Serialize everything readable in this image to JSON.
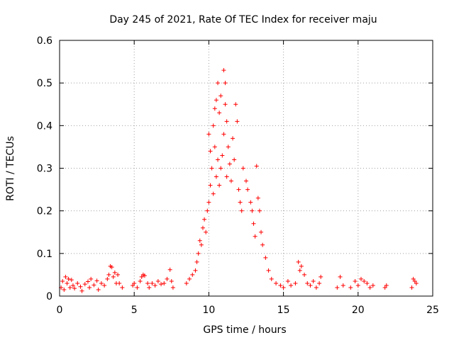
{
  "chart_data": {
    "type": "scatter",
    "title": "Day 245 of 2021, Rate Of TEC Index for receiver maju",
    "xlabel": "GPS time / hours",
    "ylabel": "ROTI / TECUs",
    "xlim": [
      0,
      25
    ],
    "ylim": [
      0,
      0.6
    ],
    "xticks": [
      0,
      5,
      10,
      15,
      20,
      25
    ],
    "yticks": [
      0,
      0.1,
      0.2,
      0.3,
      0.4,
      0.5,
      0.6
    ],
    "xtick_labels": [
      "0",
      "5",
      "10",
      "15",
      "20",
      "25"
    ],
    "ytick_labels": [
      "0",
      "0.1",
      "0.2",
      "0.3",
      "0.4",
      "0.5",
      "0.6"
    ],
    "grid": true,
    "marker": "+",
    "color": "#ff0000",
    "series": [
      {
        "name": "ROTI",
        "points": [
          [
            0.1,
            0.02
          ],
          [
            0.2,
            0.035
          ],
          [
            0.3,
            0.015
          ],
          [
            0.4,
            0.045
          ],
          [
            0.5,
            0.03
          ],
          [
            0.6,
            0.04
          ],
          [
            0.7,
            0.02
          ],
          [
            0.8,
            0.038
          ],
          [
            0.9,
            0.025
          ],
          [
            1.0,
            0.018
          ],
          [
            1.2,
            0.03
          ],
          [
            1.4,
            0.022
          ],
          [
            1.5,
            0.012
          ],
          [
            1.7,
            0.028
          ],
          [
            1.9,
            0.034
          ],
          [
            2.0,
            0.02
          ],
          [
            2.1,
            0.04
          ],
          [
            2.3,
            0.026
          ],
          [
            2.5,
            0.036
          ],
          [
            2.6,
            0.015
          ],
          [
            2.8,
            0.03
          ],
          [
            3.0,
            0.025
          ],
          [
            3.2,
            0.04
          ],
          [
            3.3,
            0.05
          ],
          [
            3.4,
            0.07
          ],
          [
            3.5,
            0.068
          ],
          [
            3.6,
            0.045
          ],
          [
            3.7,
            0.055
          ],
          [
            3.8,
            0.03
          ],
          [
            3.9,
            0.05
          ],
          [
            4.0,
            0.03
          ],
          [
            4.2,
            0.02
          ],
          [
            4.9,
            0.025
          ],
          [
            5.0,
            0.03
          ],
          [
            5.2,
            0.02
          ],
          [
            5.4,
            0.035
          ],
          [
            5.5,
            0.045
          ],
          [
            5.6,
            0.05
          ],
          [
            5.7,
            0.048
          ],
          [
            5.9,
            0.03
          ],
          [
            6.0,
            0.02
          ],
          [
            6.2,
            0.03
          ],
          [
            6.4,
            0.025
          ],
          [
            6.6,
            0.035
          ],
          [
            6.8,
            0.028
          ],
          [
            7.0,
            0.03
          ],
          [
            7.2,
            0.04
          ],
          [
            7.4,
            0.062
          ],
          [
            7.5,
            0.035
          ],
          [
            7.6,
            0.02
          ],
          [
            8.5,
            0.03
          ],
          [
            8.7,
            0.04
          ],
          [
            8.9,
            0.05
          ],
          [
            9.1,
            0.06
          ],
          [
            9.2,
            0.08
          ],
          [
            9.3,
            0.1
          ],
          [
            9.4,
            0.13
          ],
          [
            9.5,
            0.12
          ],
          [
            9.6,
            0.16
          ],
          [
            9.7,
            0.18
          ],
          [
            9.8,
            0.15
          ],
          [
            9.9,
            0.2
          ],
          [
            10.0,
            0.22
          ],
          [
            10.0,
            0.38
          ],
          [
            10.1,
            0.26
          ],
          [
            10.1,
            0.34
          ],
          [
            10.2,
            0.3
          ],
          [
            10.3,
            0.4
          ],
          [
            10.3,
            0.24
          ],
          [
            10.4,
            0.44
          ],
          [
            10.4,
            0.35
          ],
          [
            10.5,
            0.46
          ],
          [
            10.5,
            0.28
          ],
          [
            10.6,
            0.5
          ],
          [
            10.6,
            0.32
          ],
          [
            10.7,
            0.43
          ],
          [
            10.7,
            0.26
          ],
          [
            10.8,
            0.47
          ],
          [
            10.8,
            0.3
          ],
          [
            10.9,
            0.33
          ],
          [
            11.0,
            0.53
          ],
          [
            11.0,
            0.38
          ],
          [
            11.1,
            0.5
          ],
          [
            11.1,
            0.45
          ],
          [
            11.2,
            0.41
          ],
          [
            11.2,
            0.28
          ],
          [
            11.3,
            0.35
          ],
          [
            11.4,
            0.31
          ],
          [
            11.5,
            0.27
          ],
          [
            11.6,
            0.37
          ],
          [
            11.7,
            0.32
          ],
          [
            11.8,
            0.45
          ],
          [
            11.9,
            0.41
          ],
          [
            12.0,
            0.25
          ],
          [
            12.1,
            0.22
          ],
          [
            12.2,
            0.2
          ],
          [
            12.3,
            0.3
          ],
          [
            12.5,
            0.27
          ],
          [
            12.6,
            0.25
          ],
          [
            12.8,
            0.22
          ],
          [
            12.9,
            0.2
          ],
          [
            13.0,
            0.17
          ],
          [
            13.1,
            0.14
          ],
          [
            13.2,
            0.305
          ],
          [
            13.3,
            0.23
          ],
          [
            13.4,
            0.2
          ],
          [
            13.5,
            0.15
          ],
          [
            13.6,
            0.12
          ],
          [
            13.8,
            0.09
          ],
          [
            14.0,
            0.06
          ],
          [
            14.2,
            0.04
          ],
          [
            14.5,
            0.03
          ],
          [
            14.8,
            0.025
          ],
          [
            15.0,
            0.02
          ],
          [
            15.3,
            0.035
          ],
          [
            15.5,
            0.025
          ],
          [
            15.8,
            0.03
          ],
          [
            16.0,
            0.08
          ],
          [
            16.1,
            0.06
          ],
          [
            16.2,
            0.07
          ],
          [
            16.4,
            0.05
          ],
          [
            16.6,
            0.03
          ],
          [
            16.8,
            0.025
          ],
          [
            17.0,
            0.035
          ],
          [
            17.2,
            0.02
          ],
          [
            17.4,
            0.03
          ],
          [
            17.5,
            0.045
          ],
          [
            18.6,
            0.02
          ],
          [
            18.8,
            0.045
          ],
          [
            19.0,
            0.025
          ],
          [
            19.5,
            0.02
          ],
          [
            19.8,
            0.035
          ],
          [
            20.0,
            0.025
          ],
          [
            20.2,
            0.04
          ],
          [
            20.4,
            0.035
          ],
          [
            20.6,
            0.03
          ],
          [
            20.8,
            0.02
          ],
          [
            21.0,
            0.025
          ],
          [
            21.8,
            0.02
          ],
          [
            21.9,
            0.025
          ],
          [
            23.6,
            0.02
          ],
          [
            23.7,
            0.04
          ],
          [
            23.8,
            0.035
          ],
          [
            23.9,
            0.03
          ]
        ]
      }
    ]
  }
}
